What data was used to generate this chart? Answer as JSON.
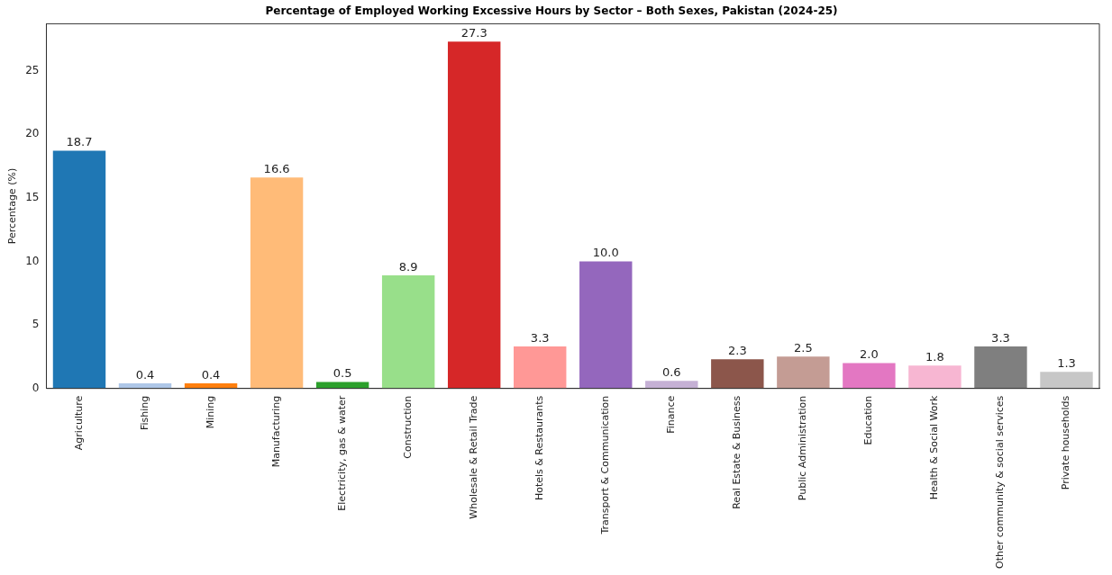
{
  "chart_data": {
    "type": "bar",
    "title": "Percentage of Employed Working Excessive Hours by Sector – Both Sexes, Pakistan (2024-25)",
    "ylabel": "Percentage (%)",
    "categories": [
      "Agriculture",
      "Fishing",
      "Mining",
      "Manufacturing",
      "Electricity, gas & water",
      "Construction",
      "Wholesale & Retail Trade",
      "Hotels & Restaurants",
      "Transport & Communication",
      "Finance",
      "Real Estate & Business",
      "Public Administration",
      "Education",
      "Health & Social Work",
      "Other community & social services",
      "Private households"
    ],
    "values": [
      18.7,
      0.4,
      0.4,
      16.6,
      0.5,
      8.9,
      27.3,
      3.3,
      10.0,
      0.6,
      2.3,
      2.5,
      2.0,
      1.8,
      3.3,
      1.3
    ],
    "value_labels": [
      "18.7",
      "0.4",
      "0.4",
      "16.6",
      "0.5",
      "8.9",
      "27.3",
      "3.3",
      "10.0",
      "0.6",
      "2.3",
      "2.5",
      "2.0",
      "1.8",
      "3.3",
      "1.3"
    ],
    "colors": [
      "#1f77b4",
      "#aec7e8",
      "#ff7f0e",
      "#ffbb78",
      "#2ca02c",
      "#98df8a",
      "#d62728",
      "#ff9896",
      "#9467bd",
      "#c5b0d5",
      "#8c564b",
      "#c49c94",
      "#e377c2",
      "#f7b6d2",
      "#7f7f7f",
      "#c7c7c7"
    ],
    "ylim": [
      0,
      28.7
    ],
    "yticks": [
      0,
      5,
      10,
      15,
      20,
      25
    ],
    "grid": false,
    "legend": false
  }
}
